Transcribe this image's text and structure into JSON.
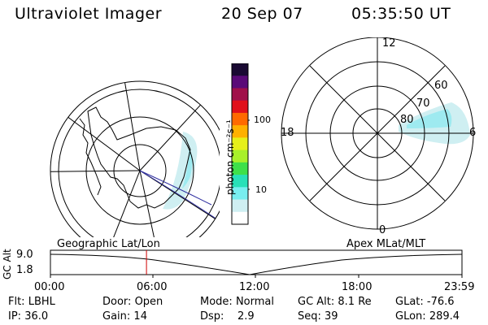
{
  "header": {
    "title": "Ultraviolet Imager",
    "date": "20 Sep 07",
    "time": "05:35:50 UT"
  },
  "colorbar": {
    "unit_label": "photon cm⁻²s⁻¹",
    "ticks": [
      "100",
      "10"
    ],
    "colors": [
      "#1a0a33",
      "#5a0a78",
      "#a0104a",
      "#e0101a",
      "#ff6a00",
      "#ffb000",
      "#e6f01a",
      "#a8f02a",
      "#3ee04a",
      "#28e0b8",
      "#78eef0",
      "#cfeff2",
      "#ffffff"
    ]
  },
  "apex_dial": {
    "mlt_labels": [
      "12",
      "18",
      "6",
      "0"
    ],
    "lat_labels": [
      "60",
      "70",
      "80"
    ]
  },
  "timeline": {
    "geo_label": "Geographic Lat/Lon",
    "apex_label": "Apex MLat/MLT",
    "axis_title": "GC Alt",
    "y_ticks": [
      "9.0",
      "1.8"
    ],
    "x_ticks": [
      "00:00",
      "06:00",
      "12:00",
      "18:00",
      "23:59"
    ],
    "current_time_hours": 5.6
  },
  "footer": {
    "row1": [
      {
        "label": "Flt:",
        "value": "LBHL"
      },
      {
        "label": "Door:",
        "value": "Open"
      },
      {
        "label": "Mode:",
        "value": "Normal"
      },
      {
        "label": "GC Alt:",
        "value": "8.1 Re"
      },
      {
        "label": "GLat:",
        "value": "-76.6"
      }
    ],
    "row2": [
      {
        "label": "IP:",
        "value": "36.0"
      },
      {
        "label": "Gain:",
        "value": "14"
      },
      {
        "label": "Dsp:",
        "value": "2.9"
      },
      {
        "label": "Seq:",
        "value": "39"
      },
      {
        "label": "GLon:",
        "value": "289.4"
      }
    ]
  }
}
